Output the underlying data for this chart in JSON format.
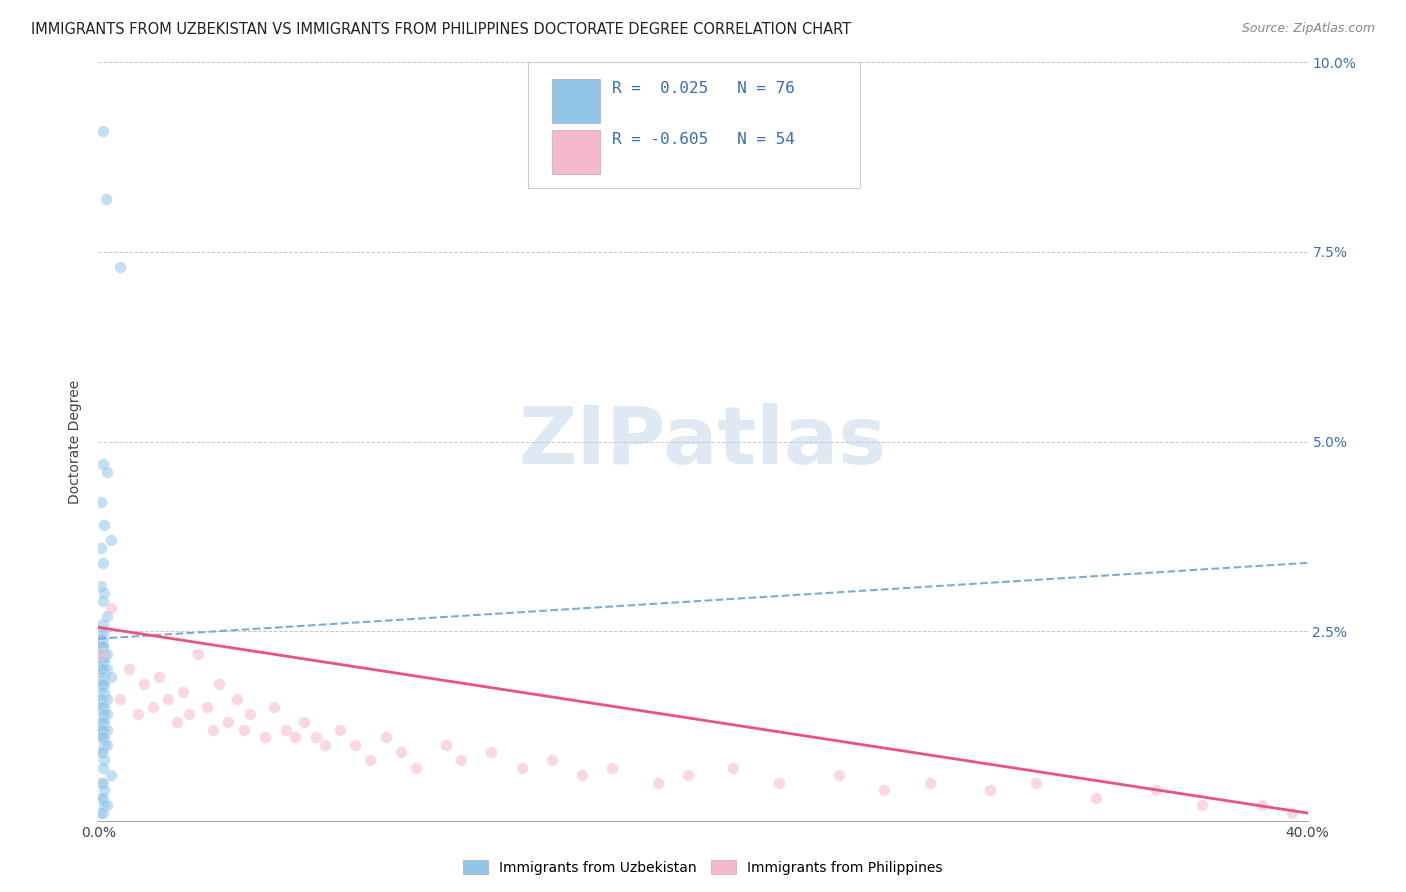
{
  "title": "IMMIGRANTS FROM UZBEKISTAN VS IMMIGRANTS FROM PHILIPPINES DOCTORATE DEGREE CORRELATION CHART",
  "source": "Source: ZipAtlas.com",
  "ylabel": "Doctorate Degree",
  "xlim": [
    0.0,
    0.4
  ],
  "ylim": [
    0.0,
    0.1
  ],
  "xticks": [
    0.0,
    0.05,
    0.1,
    0.15,
    0.2,
    0.25,
    0.3,
    0.35,
    0.4
  ],
  "yticks": [
    0.0,
    0.025,
    0.05,
    0.075,
    0.1
  ],
  "ytick_labels_right": [
    "",
    "2.5%",
    "5.0%",
    "7.5%",
    "10.0%"
  ],
  "legend_line1": "R =  0.025   N = 76",
  "legend_line2": "R = -0.605   N = 54",
  "watermark_text": "ZIPatlas",
  "blue_scatter_color": "#92C5E8",
  "pink_scatter_color": "#F5B8CC",
  "blue_line_color": "#3D6CB5",
  "blue_dash_color": "#7AADD4",
  "pink_line_color": "#E8547A",
  "legend_color": "#3D6CB5",
  "right_axis_color": "#3D6CB5",
  "grid_color": "#C8C8C8",
  "background_color": "#FFFFFF",
  "title_fontsize": 10.5,
  "source_fontsize": 9,
  "tick_fontsize": 10,
  "legend_fontsize": 11.5,
  "ylabel_fontsize": 10,
  "marker_size": 70,
  "marker_alpha": 0.55,
  "uz_line_start_y": 0.024,
  "uz_line_end_y": 0.034,
  "ph_line_start_y": 0.0255,
  "ph_line_end_y": 0.001,
  "uz_x": [
    0.0015,
    0.0025,
    0.007,
    0.0015,
    0.003,
    0.001,
    0.002,
    0.004,
    0.001,
    0.0015,
    0.001,
    0.002,
    0.0015,
    0.003,
    0.0015,
    0.001,
    0.002,
    0.0015,
    0.001,
    0.0015,
    0.001,
    0.0015,
    0.002,
    0.001,
    0.003,
    0.0015,
    0.001,
    0.002,
    0.0015,
    0.003,
    0.001,
    0.0015,
    0.002,
    0.001,
    0.004,
    0.0015,
    0.001,
    0.002,
    0.0015,
    0.001,
    0.002,
    0.0015,
    0.003,
    0.001,
    0.0015,
    0.002,
    0.001,
    0.0015,
    0.003,
    0.002,
    0.0015,
    0.001,
    0.002,
    0.0015,
    0.003,
    0.001,
    0.0015,
    0.002,
    0.001,
    0.0015,
    0.002,
    0.003,
    0.0015,
    0.001,
    0.002,
    0.0015,
    0.004,
    0.001,
    0.0015,
    0.002,
    0.001,
    0.0015,
    0.003,
    0.002,
    0.0015,
    0.001
  ],
  "uz_y": [
    0.091,
    0.082,
    0.073,
    0.047,
    0.046,
    0.042,
    0.039,
    0.037,
    0.036,
    0.034,
    0.031,
    0.03,
    0.029,
    0.027,
    0.026,
    0.025,
    0.025,
    0.024,
    0.024,
    0.023,
    0.023,
    0.023,
    0.022,
    0.022,
    0.022,
    0.021,
    0.021,
    0.021,
    0.02,
    0.02,
    0.02,
    0.02,
    0.019,
    0.019,
    0.019,
    0.018,
    0.018,
    0.018,
    0.018,
    0.017,
    0.017,
    0.016,
    0.016,
    0.016,
    0.015,
    0.015,
    0.015,
    0.014,
    0.014,
    0.014,
    0.013,
    0.013,
    0.013,
    0.012,
    0.012,
    0.012,
    0.012,
    0.011,
    0.011,
    0.011,
    0.01,
    0.01,
    0.009,
    0.009,
    0.008,
    0.007,
    0.006,
    0.005,
    0.005,
    0.004,
    0.003,
    0.003,
    0.002,
    0.002,
    0.001,
    0.001
  ],
  "ph_x": [
    0.001,
    0.004,
    0.007,
    0.01,
    0.013,
    0.015,
    0.018,
    0.02,
    0.023,
    0.026,
    0.028,
    0.03,
    0.033,
    0.036,
    0.038,
    0.04,
    0.043,
    0.046,
    0.048,
    0.05,
    0.055,
    0.058,
    0.062,
    0.065,
    0.068,
    0.072,
    0.075,
    0.08,
    0.085,
    0.09,
    0.095,
    0.1,
    0.105,
    0.115,
    0.12,
    0.13,
    0.14,
    0.15,
    0.16,
    0.17,
    0.185,
    0.195,
    0.21,
    0.225,
    0.245,
    0.26,
    0.275,
    0.295,
    0.31,
    0.33,
    0.35,
    0.365,
    0.385,
    0.395
  ],
  "ph_y": [
    0.022,
    0.028,
    0.016,
    0.02,
    0.014,
    0.018,
    0.015,
    0.019,
    0.016,
    0.013,
    0.017,
    0.014,
    0.022,
    0.015,
    0.012,
    0.018,
    0.013,
    0.016,
    0.012,
    0.014,
    0.011,
    0.015,
    0.012,
    0.011,
    0.013,
    0.011,
    0.01,
    0.012,
    0.01,
    0.008,
    0.011,
    0.009,
    0.007,
    0.01,
    0.008,
    0.009,
    0.007,
    0.008,
    0.006,
    0.007,
    0.005,
    0.006,
    0.007,
    0.005,
    0.006,
    0.004,
    0.005,
    0.004,
    0.005,
    0.003,
    0.004,
    0.002,
    0.002,
    0.001
  ]
}
